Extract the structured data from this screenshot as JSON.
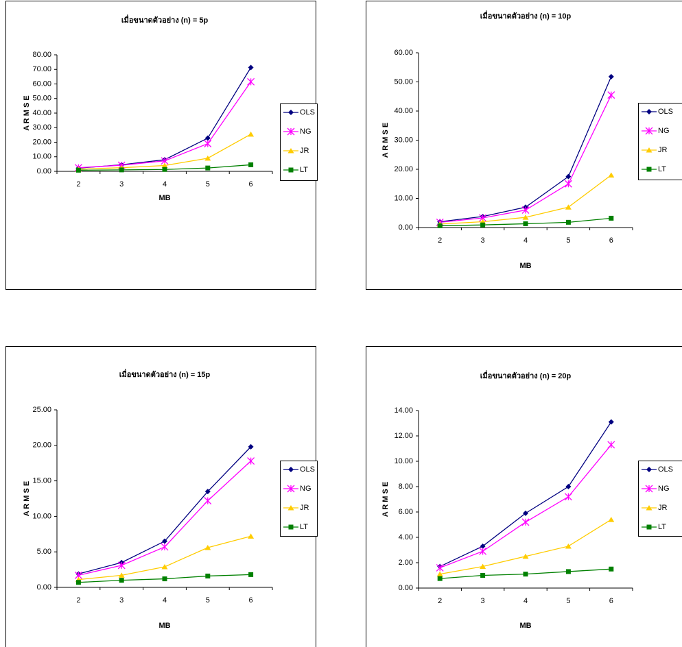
{
  "chart_data": [
    {
      "type": "line",
      "title": "เมื่อขนาดตัวอย่าง (n) = 5p",
      "x_label": "MB",
      "y_label": "A R M S E",
      "categories": [
        "2",
        "3",
        "4",
        "5",
        "6"
      ],
      "series": [
        {
          "name": "OLS",
          "color": "#000080",
          "marker": "diamond",
          "values": [
            2.2,
            4.5,
            8.0,
            22.8,
            71.3
          ]
        },
        {
          "name": "NG",
          "color": "#ff00ff",
          "marker": "star",
          "values": [
            2.5,
            4.2,
            7.2,
            19.0,
            61.5
          ]
        },
        {
          "name": "JR",
          "color": "#ffcc00",
          "marker": "triangle",
          "values": [
            1.5,
            2.5,
            4.0,
            9.0,
            25.5
          ]
        },
        {
          "name": "LT",
          "color": "#008000",
          "marker": "square",
          "values": [
            0.8,
            1.0,
            1.3,
            2.3,
            4.5
          ]
        }
      ],
      "ylim": [
        0,
        80
      ],
      "yticks": [
        {
          "value": 0,
          "label": "0.00"
        },
        {
          "value": 10,
          "label": "10.00"
        },
        {
          "value": 20,
          "label": "20.00"
        },
        {
          "value": 30,
          "label": "30.00"
        },
        {
          "value": 40,
          "label": "40.00"
        },
        {
          "value": 50,
          "label": "50.00"
        },
        {
          "value": 60,
          "label": "60.00"
        },
        {
          "value": 70,
          "label": "70.00"
        },
        {
          "value": 80,
          "label": "80.00"
        }
      ]
    },
    {
      "type": "line",
      "title": "เมื่อขนาดตัวอย่าง (n) = 10p",
      "x_label": "MB",
      "y_label": "A R M S E",
      "categories": [
        "2",
        "3",
        "4",
        "5",
        "6"
      ],
      "series": [
        {
          "name": "OLS",
          "color": "#000080",
          "marker": "diamond",
          "values": [
            2.0,
            3.8,
            7.0,
            17.5,
            51.8
          ]
        },
        {
          "name": "NG",
          "color": "#ff00ff",
          "marker": "star",
          "values": [
            1.8,
            3.3,
            6.0,
            15.0,
            45.5
          ]
        },
        {
          "name": "JR",
          "color": "#ffcc00",
          "marker": "triangle",
          "values": [
            1.2,
            2.0,
            3.5,
            7.0,
            18.0
          ]
        },
        {
          "name": "LT",
          "color": "#008000",
          "marker": "square",
          "values": [
            0.6,
            0.9,
            1.3,
            1.8,
            3.2
          ]
        }
      ],
      "ylim": [
        0,
        60
      ],
      "yticks": [
        {
          "value": 0,
          "label": "0.00"
        },
        {
          "value": 10,
          "label": "10.00"
        },
        {
          "value": 20,
          "label": "20.00"
        },
        {
          "value": 30,
          "label": "30.00"
        },
        {
          "value": 40,
          "label": "40.00"
        },
        {
          "value": 50,
          "label": "50.00"
        },
        {
          "value": 60,
          "label": "60.00"
        }
      ]
    },
    {
      "type": "line",
      "title": "เมื่อขนาดตัวอย่าง (n) = 15p",
      "x_label": "MB",
      "y_label": "A R M S E",
      "categories": [
        "2",
        "3",
        "4",
        "5",
        "6"
      ],
      "series": [
        {
          "name": "OLS",
          "color": "#000080",
          "marker": "diamond",
          "values": [
            1.9,
            3.5,
            6.5,
            13.5,
            19.8
          ]
        },
        {
          "name": "NG",
          "color": "#ff00ff",
          "marker": "star",
          "values": [
            1.7,
            3.1,
            5.7,
            12.2,
            17.8
          ]
        },
        {
          "name": "JR",
          "color": "#ffcc00",
          "marker": "triangle",
          "values": [
            1.1,
            1.7,
            2.9,
            5.6,
            7.2
          ]
        },
        {
          "name": "LT",
          "color": "#008000",
          "marker": "square",
          "values": [
            0.7,
            1.0,
            1.2,
            1.6,
            1.8
          ]
        }
      ],
      "ylim": [
        0,
        25
      ],
      "yticks": [
        {
          "value": 0,
          "label": "0.00"
        },
        {
          "value": 5,
          "label": "5.00"
        },
        {
          "value": 10,
          "label": "10.00"
        },
        {
          "value": 15,
          "label": "15.00"
        },
        {
          "value": 20,
          "label": "20.00"
        },
        {
          "value": 25,
          "label": "25.00"
        }
      ]
    },
    {
      "type": "line",
      "title": "เมื่อขนาดตัวอย่าง (n) = 20p",
      "x_label": "MB",
      "y_label": "A R M S E",
      "categories": [
        "2",
        "3",
        "4",
        "5",
        "6"
      ],
      "series": [
        {
          "name": "OLS",
          "color": "#000080",
          "marker": "diamond",
          "values": [
            1.7,
            3.3,
            5.9,
            8.0,
            13.1
          ]
        },
        {
          "name": "NG",
          "color": "#ff00ff",
          "marker": "star",
          "values": [
            1.6,
            2.9,
            5.2,
            7.2,
            11.3
          ]
        },
        {
          "name": "JR",
          "color": "#ffcc00",
          "marker": "triangle",
          "values": [
            1.1,
            1.7,
            2.5,
            3.3,
            5.4
          ]
        },
        {
          "name": "LT",
          "color": "#008000",
          "marker": "square",
          "values": [
            0.75,
            1.0,
            1.1,
            1.3,
            1.5
          ]
        }
      ],
      "ylim": [
        0,
        14
      ],
      "yticks": [
        {
          "value": 0,
          "label": "0.00"
        },
        {
          "value": 2,
          "label": "2.00"
        },
        {
          "value": 4,
          "label": "4.00"
        },
        {
          "value": 6,
          "label": "6.00"
        },
        {
          "value": 8,
          "label": "8.00"
        },
        {
          "value": 10,
          "label": "10.00"
        },
        {
          "value": 12,
          "label": "12.00"
        },
        {
          "value": 14,
          "label": "14.00"
        }
      ]
    }
  ]
}
